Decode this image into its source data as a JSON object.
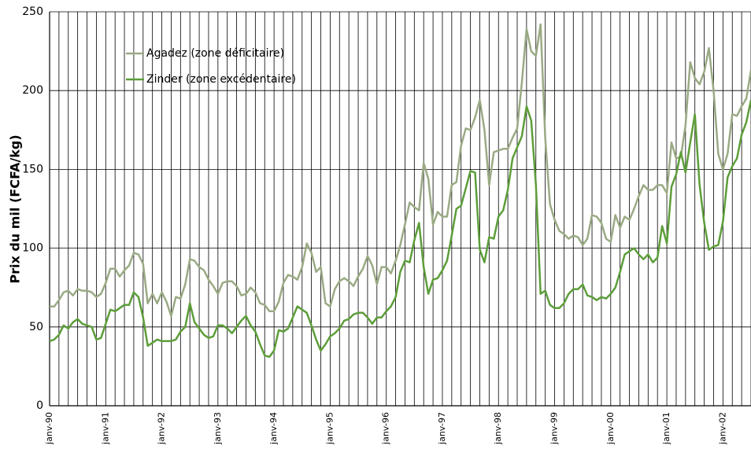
{
  "chart_data": {
    "type": "line",
    "y_label": "Prix du mil (FCFA/kg)",
    "categories": [
      "janv-90",
      null,
      null,
      null,
      null,
      null,
      null,
      null,
      null,
      null,
      null,
      null,
      "janv-91",
      null,
      null,
      null,
      null,
      null,
      null,
      null,
      null,
      null,
      null,
      null,
      "janv-92",
      null,
      null,
      null,
      null,
      null,
      null,
      null,
      null,
      null,
      null,
      null,
      "janv-93",
      null,
      null,
      null,
      null,
      null,
      null,
      null,
      null,
      null,
      null,
      null,
      "janv-94",
      null,
      null,
      null,
      null,
      null,
      null,
      null,
      null,
      null,
      null,
      null,
      "janv-95",
      null,
      null,
      null,
      null,
      null,
      null,
      null,
      null,
      null,
      null,
      null,
      "janv-96",
      null,
      null,
      null,
      null,
      null,
      null,
      null,
      null,
      null,
      null,
      null,
      "janv-97",
      null,
      null,
      null,
      null,
      null,
      null,
      null,
      null,
      null,
      null,
      null,
      "janv-98",
      null,
      null,
      null,
      null,
      null,
      null,
      null,
      null,
      null,
      null,
      null,
      "janv-99",
      null,
      null,
      null,
      null,
      null,
      null,
      null,
      null,
      null,
      null,
      null,
      "janv-00",
      null,
      null,
      null,
      null,
      null,
      null,
      null,
      null,
      null,
      null,
      null,
      "janv-01",
      null,
      null,
      null,
      null,
      null,
      null,
      null,
      null,
      null,
      null,
      null,
      "janv-02",
      null,
      null,
      null,
      null,
      null,
      null
    ],
    "series": [
      {
        "name": "Agadez (zone déficitaire)",
        "color": "#9aaa84",
        "values": [
          63,
          63,
          67,
          72,
          73,
          70,
          74,
          73,
          73,
          72,
          69,
          71,
          78,
          87,
          87,
          82,
          86,
          89,
          97,
          96,
          90,
          65,
          71,
          65,
          72,
          66,
          57,
          69,
          68,
          77,
          93,
          92,
          88,
          86,
          80,
          76,
          71,
          78,
          79,
          79,
          76,
          70,
          71,
          75,
          72,
          65,
          64,
          60,
          60,
          66,
          78,
          83,
          82,
          80,
          88,
          103,
          97,
          85,
          88,
          65,
          63,
          74,
          79,
          81,
          79,
          76,
          82,
          87,
          95,
          89,
          77,
          88,
          88,
          84,
          92,
          102,
          115,
          129,
          126,
          124,
          154,
          144,
          115,
          123,
          120,
          120,
          140,
          142,
          165,
          176,
          175,
          183,
          194,
          175,
          140,
          161,
          162,
          163,
          163,
          170,
          176,
          205,
          239,
          225,
          222,
          242,
          170,
          128,
          118,
          111,
          109,
          106,
          108,
          107,
          102,
          106,
          121,
          120,
          116,
          106,
          104,
          121,
          113,
          120,
          118,
          125,
          133,
          140,
          137,
          137,
          140,
          140,
          135,
          167,
          157,
          158,
          178,
          218,
          208,
          204,
          212,
          227,
          200,
          160,
          150,
          160,
          185,
          184,
          190,
          195,
          213
        ]
      },
      {
        "name": "Zinder (zone excédentaire)",
        "color": "#5d9e3a",
        "values": [
          41,
          42,
          45,
          51,
          49,
          53,
          55,
          52,
          51,
          50,
          42,
          43,
          52,
          61,
          60,
          62,
          64,
          64,
          72,
          69,
          56,
          38,
          40,
          42,
          41,
          41,
          41,
          42,
          47,
          50,
          65,
          53,
          49,
          45,
          43,
          44,
          51,
          51,
          49,
          46,
          50,
          54,
          57,
          51,
          47,
          39,
          32,
          31,
          35,
          48,
          47,
          49,
          56,
          63,
          61,
          59,
          51,
          42,
          35,
          39,
          44,
          46,
          49,
          54,
          55,
          58,
          59,
          59,
          56,
          52,
          56,
          56,
          60,
          63,
          69,
          85,
          92,
          91,
          105,
          116,
          88,
          71,
          80,
          81,
          86,
          92,
          108,
          125,
          127,
          138,
          149,
          148,
          99,
          91,
          107,
          106,
          120,
          124,
          137,
          157,
          164,
          171,
          190,
          181,
          140,
          71,
          73,
          64,
          62,
          62,
          65,
          71,
          74,
          74,
          77,
          70,
          69,
          67,
          69,
          68,
          71,
          75,
          85,
          96,
          98,
          100,
          96,
          93,
          96,
          91,
          94,
          114,
          103,
          139,
          147,
          161,
          148,
          167,
          185,
          140,
          116,
          99,
          101,
          102,
          117,
          145,
          152,
          157,
          172,
          180,
          194
        ]
      }
    ],
    "ylim": [
      0,
      250
    ],
    "yticks": [
      0,
      50,
      100,
      150,
      200,
      250
    ],
    "grid": true
  }
}
